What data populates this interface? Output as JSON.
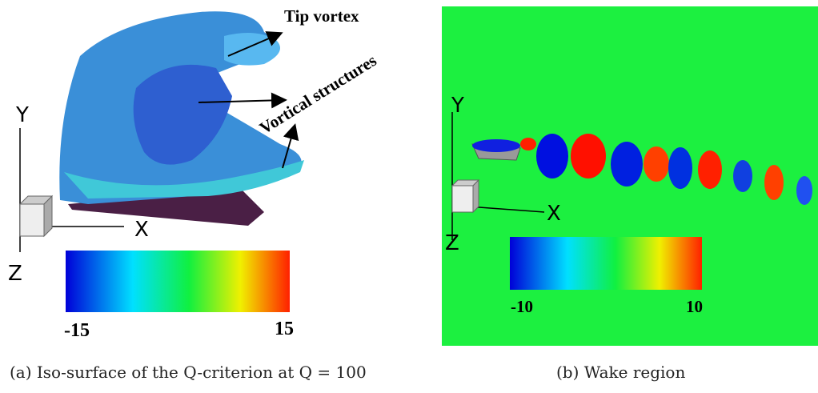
{
  "panel_a": {
    "annotations": [
      "Tip vortex",
      "Vortical structures"
    ],
    "axes": {
      "y": "Y",
      "x": "X",
      "z": "Z"
    },
    "colorbar": {
      "min": -15,
      "max": 15
    },
    "caption": "(a) Iso-surface of the Q-criterion at Q = 100"
  },
  "panel_b": {
    "axes": {
      "y": "Y",
      "x": "X",
      "z": "Z"
    },
    "colorbar": {
      "min": -10,
      "max": 10
    },
    "caption": "(b) Wake region"
  }
}
